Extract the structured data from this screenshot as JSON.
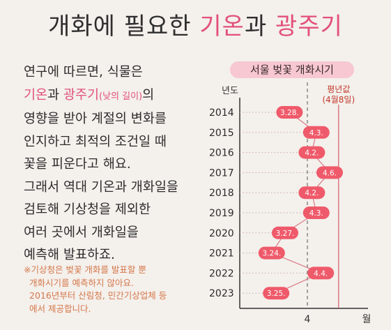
{
  "title": {
    "part1": "개화에 필요한 ",
    "part2": "기온",
    "part3": "과 ",
    "part4": "광주기"
  },
  "body": {
    "line1": "연구에 따르면, 식물은",
    "line2_a": "기온",
    "line2_b": "과 ",
    "line2_c": "광주기",
    "line2_d": "(낮의 길이)",
    "line2_e": "의",
    "line3": "영향을 받아 계절의 변화를",
    "line4": "인지하고 최적의 조건일 때",
    "line5": "꽃을 피운다고 해요.",
    "line6": "그래서 역대 기온과 개화일을",
    "line7": "검토해 기상청을 제외한",
    "line8": "여러 곳에서 개화일을",
    "line9": "예측해 발표하죠."
  },
  "note": {
    "line1": "※기상청은 벚꽃 개화를 발표할 뿐",
    "line2": "개화시기를 예측하지 않아요.",
    "line3": "2016년부터 산림청, 민간기상업체 등",
    "line4": "에서 제공합니다."
  },
  "colors": {
    "accent": "#e2507a",
    "point": "#ef5a6a",
    "note": "#d4774a"
  },
  "chart_data": {
    "type": "line",
    "title": "서울 벚꽃 개화시기",
    "ylabel": "년도",
    "xlabel": "월",
    "x_tick": "4",
    "reference": {
      "label_line1": "평년값",
      "label_line2": "(4월8일)"
    },
    "categories": [
      "2014",
      "2015",
      "2016",
      "2017",
      "2018",
      "2019",
      "2020",
      "2021",
      "2022",
      "2023"
    ],
    "labels": [
      "3.28.",
      "4.3.",
      "4.2.",
      "4.6.",
      "4.2.",
      "4.3.",
      "3.27.",
      "3.24.",
      "4.4.",
      "3.25."
    ],
    "days_from_apr1": [
      -4,
      2,
      1,
      5,
      1,
      2,
      -5,
      -8,
      3,
      -7
    ]
  }
}
